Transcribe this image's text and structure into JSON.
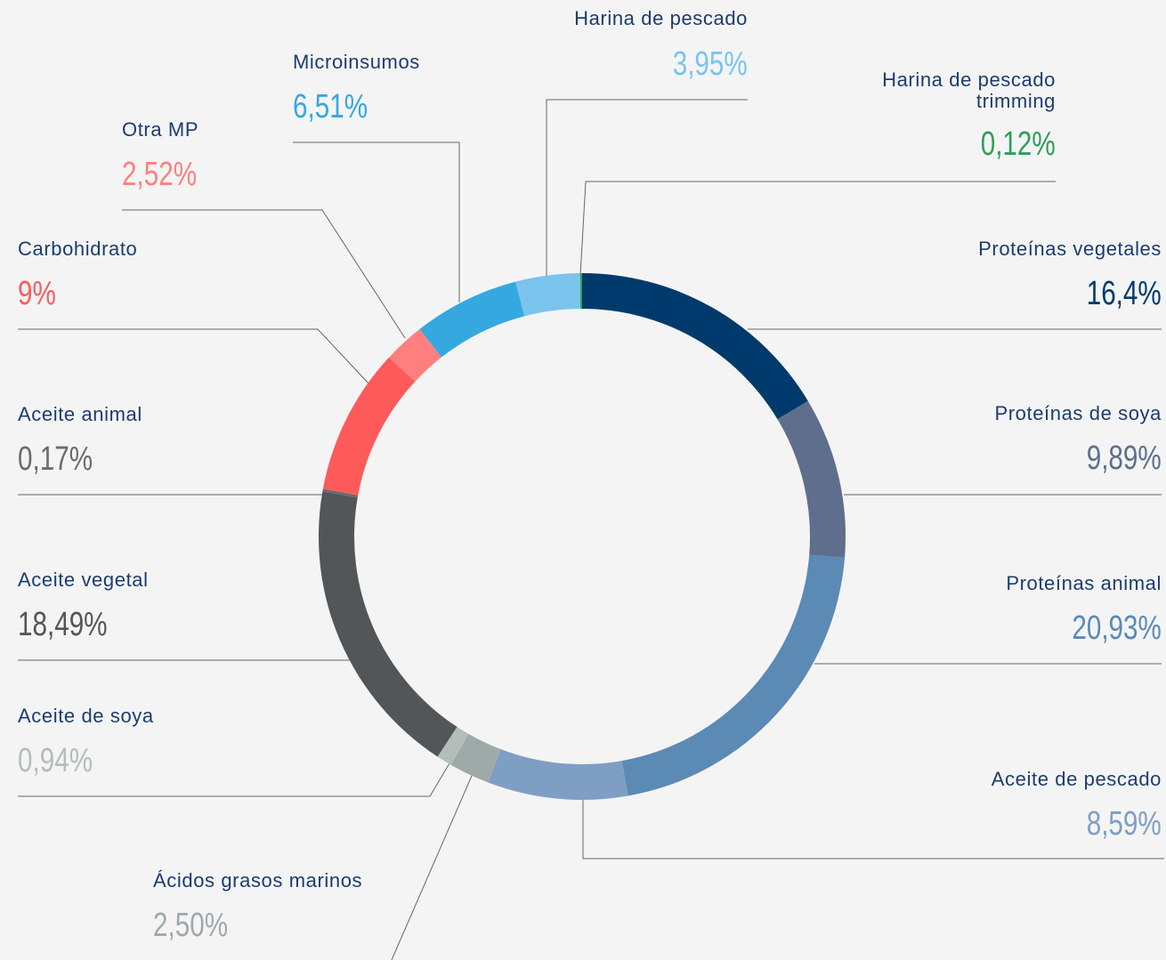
{
  "chart_data": {
    "type": "donut",
    "categories": [
      "Proteínas vegetales",
      "Proteínas de soya",
      "Proteínas animal",
      "Aceite de pescado",
      "Ácidos grasos marinos",
      "Aceite de soya",
      "Aceite vegetal",
      "Aceite animal",
      "Carbohidrato",
      "Otra MP",
      "Microinsumos",
      "Harina de pescado",
      "Harina de pescado trimming"
    ],
    "values": [
      16.4,
      9.89,
      20.93,
      8.59,
      2.5,
      0.94,
      18.49,
      0.17,
      9,
      2.52,
      6.51,
      3.95,
      0.12
    ],
    "value_labels": [
      "16,4%",
      "9,89%",
      "20,93%",
      "8,59%",
      "2,50%",
      "0,94%",
      "18,49%",
      "0,17%",
      "9%",
      "2,52%",
      "6,51%",
      "3,95%",
      "0,12%"
    ],
    "colors": [
      "#003a6c",
      "#5f6e8c",
      "#5b8ab5",
      "#7f9ec4",
      "#9eaaa8",
      "#b3bdb9",
      "#525659",
      "#6b6b6b",
      "#ff5a5a",
      "#ff7f7f",
      "#35a8e0",
      "#7ac4ee",
      "#2e9e5a"
    ]
  }
}
